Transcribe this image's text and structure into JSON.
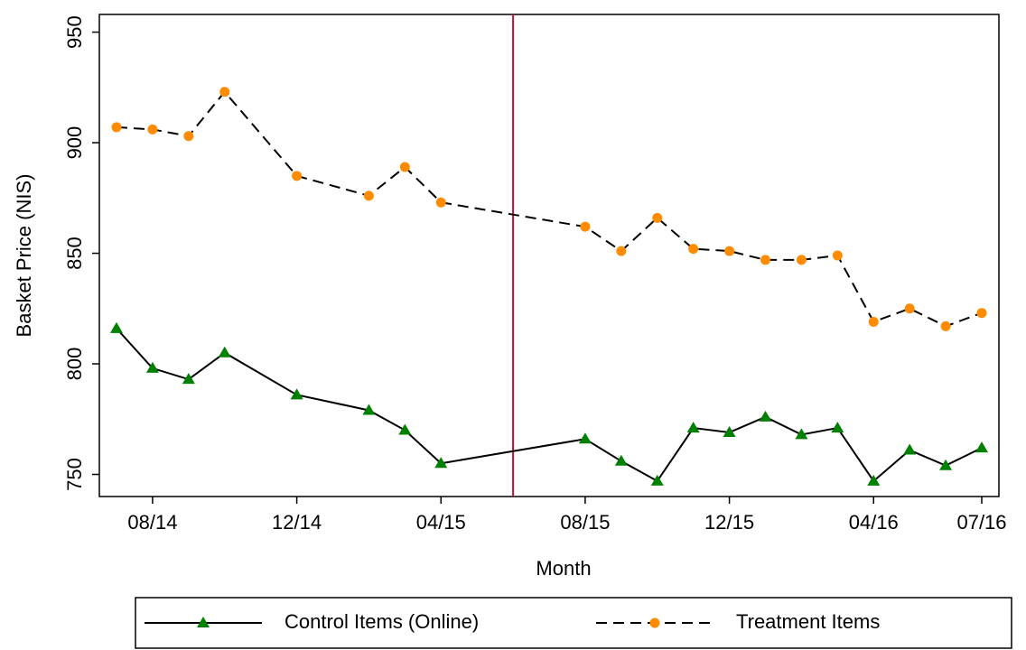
{
  "chart_data": {
    "type": "line",
    "x_label": "Month",
    "y_label": "Basket Price (NIS)",
    "x": [
      "07/14",
      "08/14",
      "09/14",
      "10/14",
      "12/14",
      "02/15",
      "03/15",
      "04/15",
      "08/15",
      "09/15",
      "10/15",
      "11/15",
      "12/15",
      "01/16",
      "02/16",
      "03/16",
      "04/16",
      "05/16",
      "06/16",
      "07/16"
    ],
    "series": [
      {
        "name": "Control Items (Online)",
        "color": "#008000",
        "line_color": "#000000",
        "dash": "solid",
        "marker": "triangle",
        "values": [
          816,
          798,
          793,
          805,
          786,
          779,
          770,
          755,
          766,
          756,
          747,
          771,
          769,
          776,
          768,
          771,
          747,
          761,
          754,
          762
        ]
      },
      {
        "name": "Treatment Items",
        "color": "#ff8c00",
        "line_color": "#000000",
        "dash": "dashed",
        "marker": "circle",
        "values": [
          907,
          906,
          903,
          923,
          885,
          876,
          889,
          873,
          862,
          851,
          866,
          852,
          851,
          847,
          847,
          849,
          819,
          825,
          817,
          823
        ]
      }
    ],
    "xlim": [
      "07/14",
      "07/16"
    ],
    "xticks": [
      "08/14",
      "12/14",
      "04/15",
      "08/15",
      "12/15",
      "04/16",
      "07/16"
    ],
    "ylim": [
      740,
      958
    ],
    "yticks": [
      750,
      800,
      850,
      900,
      950
    ],
    "vline": {
      "x": "06/15",
      "color": "#c8102e"
    },
    "legend": "bottom"
  }
}
